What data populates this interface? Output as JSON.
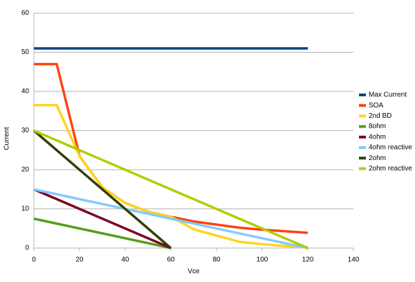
{
  "chart_data": {
    "type": "line",
    "x_label": "Vce",
    "y_label": "Current",
    "xlim": [
      0,
      140
    ],
    "xticks": [
      0,
      20,
      40,
      60,
      80,
      100,
      120,
      140
    ],
    "ylim": [
      0,
      60
    ],
    "yticks": [
      0,
      10,
      20,
      30,
      40,
      50,
      60
    ],
    "grid": true,
    "legend": "right",
    "series": [
      {
        "name": "Max Current",
        "color": "#004586",
        "x": [
          0,
          120
        ],
        "values": [
          51,
          51
        ]
      },
      {
        "name": "SOA",
        "color": "#ff420e",
        "x": [
          0,
          10,
          20,
          30,
          40,
          50,
          60,
          70,
          80,
          90,
          100,
          110,
          120
        ],
        "values": [
          47,
          47,
          23.5,
          15.5,
          11.5,
          9.3,
          8,
          6.8,
          6,
          5.2,
          4.7,
          4.3,
          3.9
        ]
      },
      {
        "name": "2nd BD",
        "color": "#ffd320",
        "x": [
          0,
          10,
          20,
          30,
          40,
          50,
          60,
          70,
          80,
          90,
          100,
          110,
          120
        ],
        "values": [
          36.5,
          36.5,
          23.5,
          15.5,
          11.5,
          9.3,
          8,
          4.8,
          3.2,
          1.6,
          1,
          0.5,
          0.2
        ]
      },
      {
        "name": "8ohm",
        "color": "#579d1c",
        "x": [
          0,
          60
        ],
        "values": [
          7.5,
          0
        ]
      },
      {
        "name": "4ohm",
        "color": "#7e0021",
        "x": [
          0,
          60
        ],
        "values": [
          15,
          0
        ]
      },
      {
        "name": "4ohm reactive",
        "color": "#83caff",
        "x": [
          0,
          120
        ],
        "values": [
          15,
          0
        ]
      },
      {
        "name": "2ohm",
        "color": "#314004",
        "x": [
          0,
          60
        ],
        "values": [
          30,
          0
        ]
      },
      {
        "name": "2ohm reactive",
        "color": "#aecf00",
        "x": [
          0,
          120
        ],
        "values": [
          30,
          0
        ]
      }
    ]
  }
}
